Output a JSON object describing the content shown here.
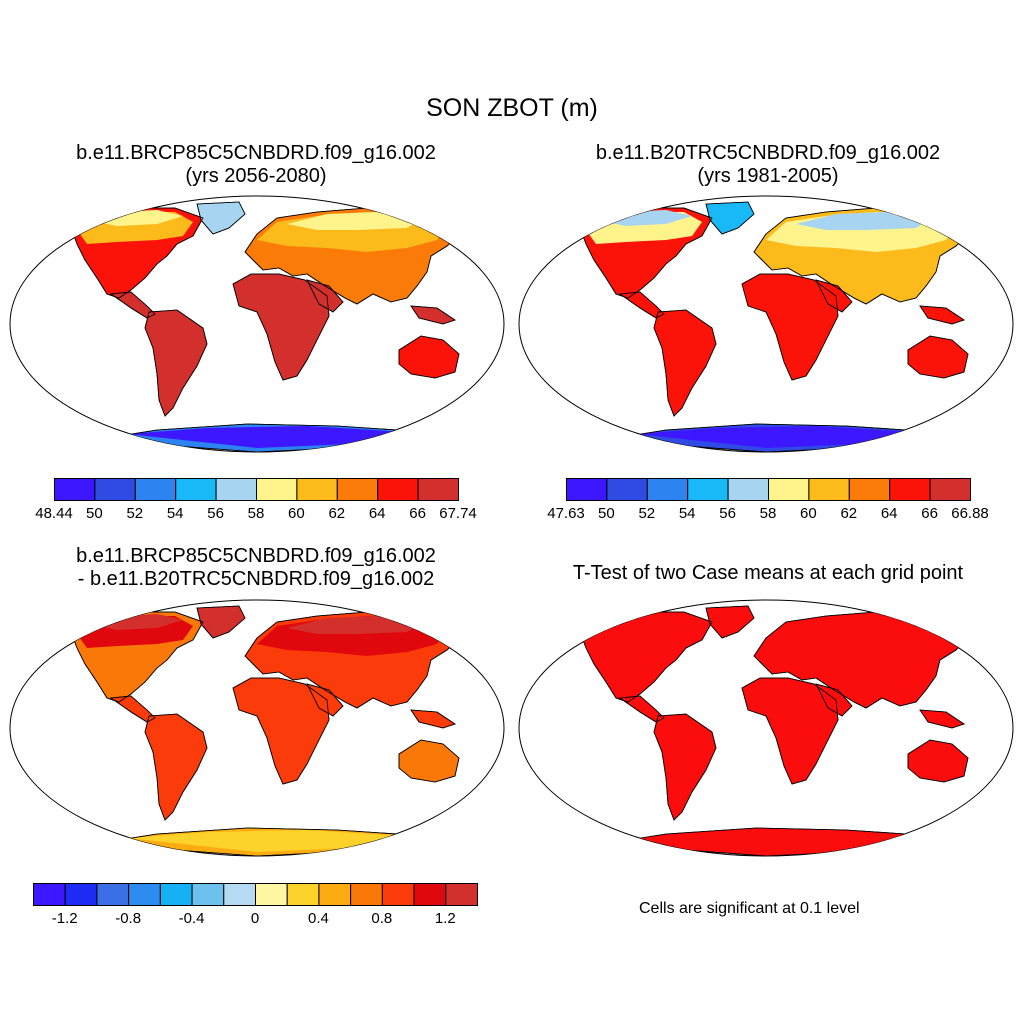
{
  "main_title": "SON ZBOT (m)",
  "panels": [
    {
      "id": "p1",
      "title_line1": "b.e11.BRCP85C5CNBDRD.f09_g16.002",
      "title_line2": "(yrs 2056-2080)"
    },
    {
      "id": "p2",
      "title_line1": "b.e11.B20TRC5CNBDRD.f09_g16.002",
      "title_line2": "(yrs 1981-2005)"
    },
    {
      "id": "p3",
      "title_line1": "b.e11.BRCP85C5CNBDRD.f09_g16.002",
      "title_line2": "- b.e11.B20TRC5CNBDRD.f09_g16.002"
    },
    {
      "id": "p4",
      "title_line1": "T-Test of two Case means at each grid point",
      "title_line2": ""
    }
  ],
  "colorbars": {
    "cb1": {
      "colors": [
        "#3c17ff",
        "#2f4be3",
        "#2d84f0",
        "#18b9f6",
        "#a7d5f1",
        "#fff38c",
        "#fcbb1b",
        "#fb7b08",
        "#fb1208",
        "#d22f2d"
      ],
      "labels": [
        "48.44",
        "50",
        "52",
        "54",
        "56",
        "58",
        "60",
        "62",
        "64",
        "66",
        "67.74"
      ]
    },
    "cb2": {
      "colors": [
        "#3c17ff",
        "#2f4be3",
        "#2d84f0",
        "#18b9f6",
        "#a7d5f1",
        "#fff38c",
        "#fcbb1b",
        "#fb7b08",
        "#fb1208",
        "#d22f2d"
      ],
      "labels": [
        "47.63",
        "50",
        "52",
        "54",
        "56",
        "58",
        "60",
        "62",
        "64",
        "66",
        "66.88"
      ]
    },
    "cb3": {
      "colors": [
        "#3c17ff",
        "#1c2cf4",
        "#3a6fe6",
        "#2d8cf0",
        "#14b1f5",
        "#6ec0ef",
        "#b5daf1",
        "#fff7a3",
        "#fcd22b",
        "#fcac10",
        "#fa7808",
        "#fb3b0a",
        "#e0070d",
        "#d22f2d"
      ],
      "labels": [
        "-1.2",
        "-0.8",
        "-0.4",
        "0",
        "0.4",
        "0.8",
        "1.2"
      ]
    }
  },
  "significance_note": "Cells are significant at 0.1 level",
  "map_colors": {
    "p1": {
      "tropics": "#d22f2d",
      "warm": "#fb1208",
      "mid": "#fb7b08",
      "cool": "#fcbb1b",
      "cold": "#fff38c",
      "greenland": "#a7d5f1",
      "antarctica": "#2d84f0",
      "antarctica_core": "#3c17ff"
    },
    "p2": {
      "tropics": "#fb1208",
      "warm": "#fb1208",
      "mid": "#fcbb1b",
      "cool": "#fff38c",
      "cold": "#a7d5f1",
      "greenland": "#18b9f6",
      "antarctica": "#2f4be3",
      "antarctica_core": "#3c17ff"
    },
    "p3": {
      "tropics": "#fb3b0a",
      "warm": "#fa7808",
      "mid": "#fb3b0a",
      "cool": "#e0070d",
      "cold": "#d22f2d",
      "greenland": "#d22f2d",
      "antarctica": "#fcac10",
      "antarctica_core": "#fcd22b"
    },
    "p4": {
      "tropics": "#fb0d0d",
      "warm": "#fb0d0d",
      "mid": "#fb0d0d",
      "cool": "#fb0d0d",
      "cold": "#fb0d0d",
      "greenland": "#fb0d0d",
      "antarctica": "#fb0d0d",
      "antarctica_core": "#fb0d0d"
    }
  }
}
